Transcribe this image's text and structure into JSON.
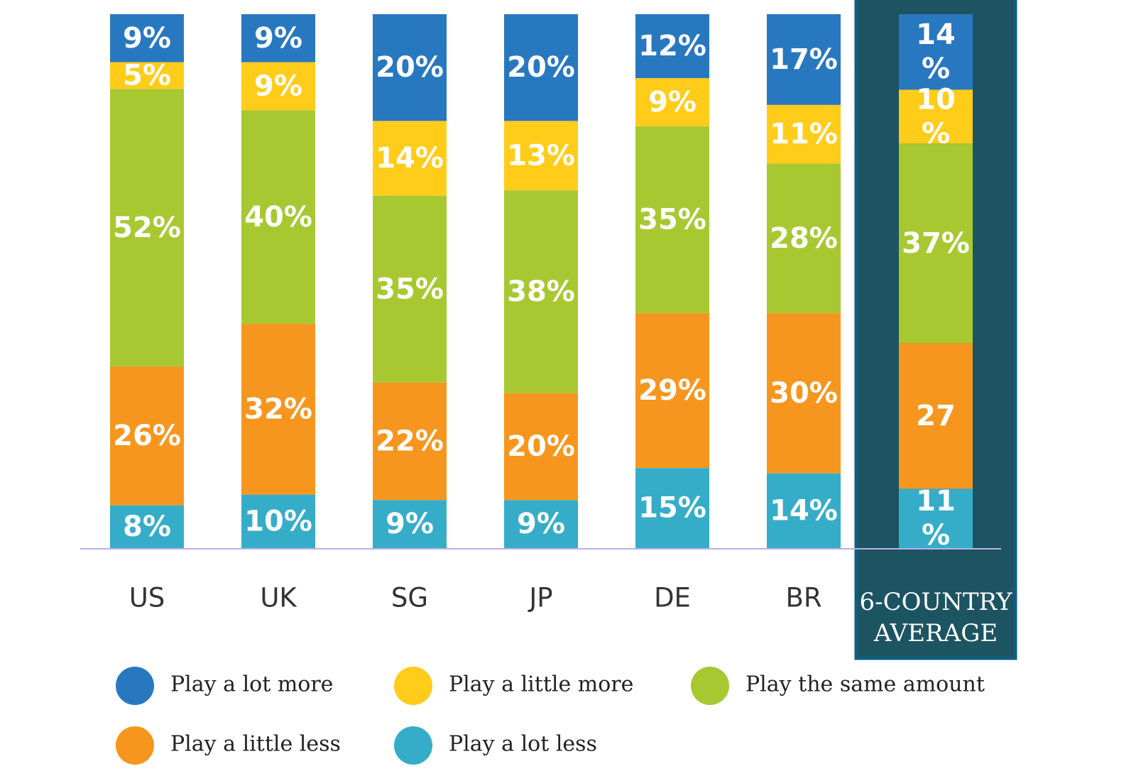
{
  "chart_data": {
    "type": "bar",
    "stacked": true,
    "normalized_percent": true,
    "categories": [
      "US",
      "UK",
      "SG",
      "JP",
      "DE",
      "BR",
      "6-COUNTRY AVERAGE"
    ],
    "category_display_lines": [
      [
        "US"
      ],
      [
        "UK"
      ],
      [
        "SG"
      ],
      [
        "JP"
      ],
      [
        "DE"
      ],
      [
        "BR"
      ],
      [
        "6-COUNTRY",
        "AVERAGE"
      ]
    ],
    "highlighted_category": "6-COUNTRY AVERAGE",
    "stack_order_top_to_bottom": [
      "Play a lot more",
      "Play a little more",
      "Play the same amount",
      "Play a little less",
      "Play a lot less"
    ],
    "series": [
      {
        "name": "Play a lot more",
        "color": "#2878c0",
        "values": [
          9,
          9,
          20,
          20,
          12,
          17,
          14
        ],
        "labels": [
          [
            "9%"
          ],
          [
            "9%"
          ],
          [
            "20%"
          ],
          [
            "20%"
          ],
          [
            "12%"
          ],
          [
            "17%"
          ],
          [
            "14",
            "%"
          ]
        ]
      },
      {
        "name": "Play a little more",
        "color": "#ffcc1a",
        "values": [
          5,
          9,
          14,
          13,
          9,
          11,
          10
        ],
        "labels": [
          [
            "5%"
          ],
          [
            "9%"
          ],
          [
            "14%"
          ],
          [
            "13%"
          ],
          [
            "9%"
          ],
          [
            "11%"
          ],
          [
            "10",
            "%"
          ]
        ]
      },
      {
        "name": "Play the same amount",
        "color": "#a8c832",
        "values": [
          52,
          40,
          35,
          38,
          35,
          28,
          37
        ],
        "labels": [
          [
            "52%"
          ],
          [
            "40%"
          ],
          [
            "35%"
          ],
          [
            "38%"
          ],
          [
            "35%"
          ],
          [
            "28%"
          ],
          [
            "37%"
          ]
        ]
      },
      {
        "name": "Play a little less",
        "color": "#f7961e",
        "values": [
          26,
          32,
          22,
          20,
          29,
          30,
          27
        ],
        "labels": [
          [
            "26%"
          ],
          [
            "32%"
          ],
          [
            "22%"
          ],
          [
            "20%"
          ],
          [
            "29%"
          ],
          [
            "30%"
          ],
          [
            "27"
          ]
        ]
      },
      {
        "name": "Play a lot less",
        "color": "#36adc8",
        "values": [
          8,
          10,
          9,
          9,
          15,
          14,
          11
        ],
        "labels": [
          [
            "8%"
          ],
          [
            "10%"
          ],
          [
            "9%"
          ],
          [
            "9%"
          ],
          [
            "15%"
          ],
          [
            "14%"
          ],
          [
            "11",
            "%"
          ]
        ]
      }
    ],
    "legend_position": "bottom",
    "title": "",
    "xlabel": "",
    "ylabel": "",
    "ylim": [
      0,
      100
    ],
    "grid": false
  },
  "colors": {
    "highlight_background": "#1c5462",
    "highlight_border": "#0f5f80",
    "baseline": "#b8b2e8"
  }
}
